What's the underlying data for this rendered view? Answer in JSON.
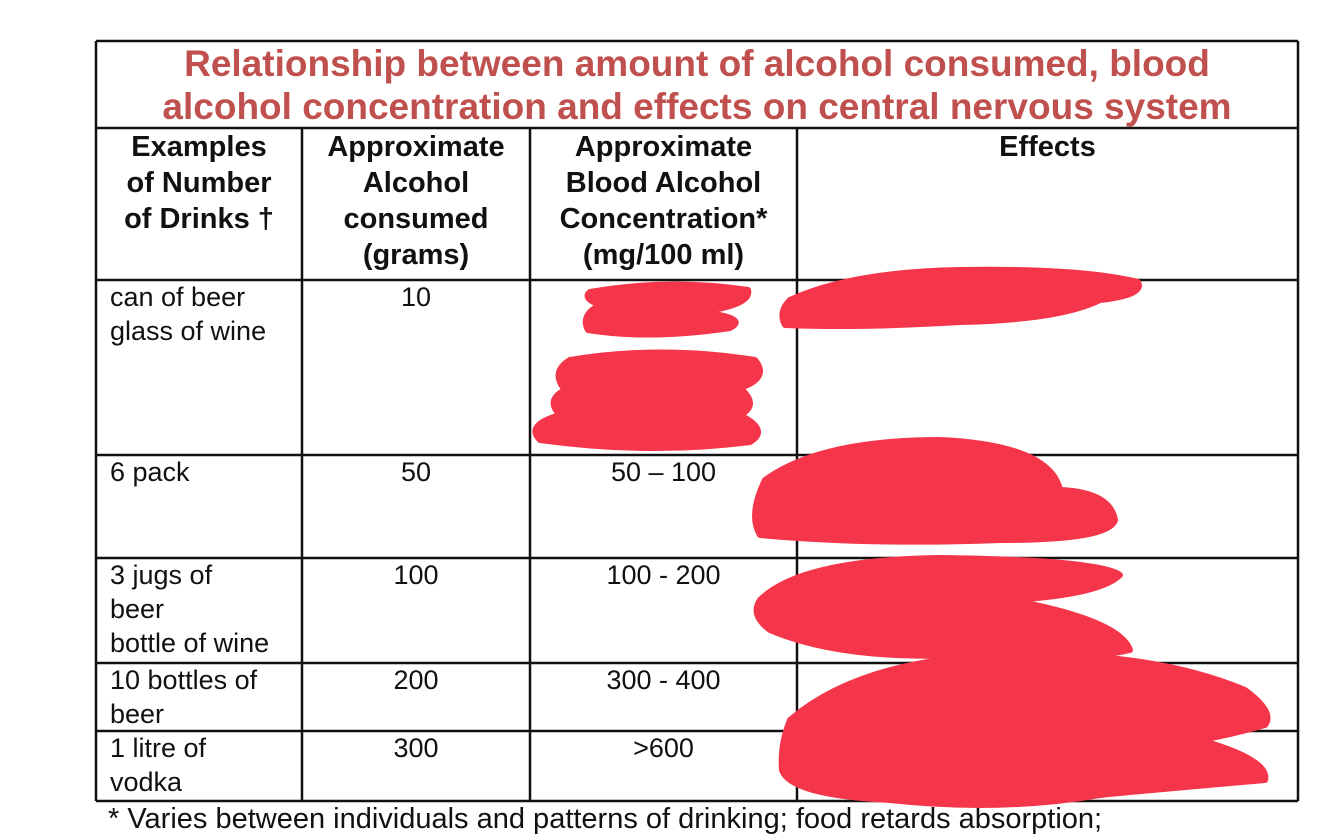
{
  "title": [
    "Relationship between amount of alcohol consumed, blood",
    "alcohol concentration and effects on central nervous system"
  ],
  "table": {
    "headers": [
      [
        "Examples",
        "of Number",
        "of Drinks †"
      ],
      [
        "Approximate",
        "Alcohol",
        "consumed",
        "(grams)"
      ],
      [
        "Approximate",
        "Blood Alcohol",
        "Concentration*",
        "(mg/100 ml)"
      ],
      [
        "Effects"
      ]
    ],
    "rows": [
      {
        "drinks": [
          "can of beer",
          "glass of wine"
        ],
        "alcohol": "10"
      },
      {
        "drinks": [
          "6 pack"
        ],
        "alcohol": "50",
        "bac": "50 – 100"
      },
      {
        "drinks": [
          "3 jugs of",
          "beer",
          "bottle of wine"
        ],
        "alcohol": "100",
        "bac": "100 - 200"
      },
      {
        "drinks": [
          "10 bottles of",
          "beer"
        ],
        "alcohol": "200",
        "bac": "300 - 400"
      },
      {
        "drinks": [
          "1 litre of",
          "vodka"
        ],
        "alcohol": "300",
        "bac": ">600"
      }
    ]
  },
  "footnote": "* Varies between individuals and patterns of drinking; food retards absorption;"
}
